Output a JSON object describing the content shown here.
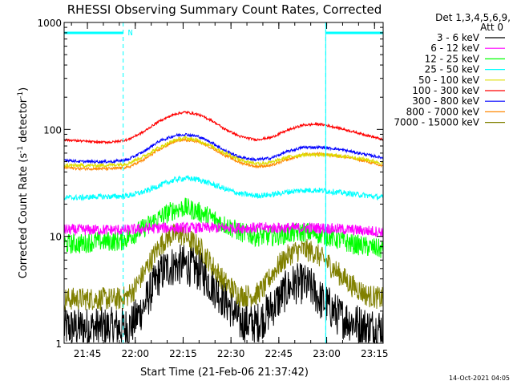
{
  "chart_data": {
    "type": "line",
    "title": "RHESSI Observing Summary Count Rates, Corrected",
    "xlabel": "Start Time (21-Feb-06 21:37:42)",
    "ylabel": "Corrected Count Rate (s",
    "ylabel_sup1": "-1",
    "ylabel_mid": " detector",
    "ylabel_sup2": "-1",
    "ylabel_end": ")",
    "yscale": "log",
    "ylim": [
      1,
      1000
    ],
    "xlim_minutes": [
      0,
      100
    ],
    "x_ticks": [
      {
        "label": "21:45",
        "minutes": 7.3
      },
      {
        "label": "22:00",
        "minutes": 22.3
      },
      {
        "label": "22:15",
        "minutes": 37.3
      },
      {
        "label": "22:30",
        "minutes": 52.3
      },
      {
        "label": "22:45",
        "minutes": 67.3
      },
      {
        "label": "23:00",
        "minutes": 82.3
      },
      {
        "label": "23:15",
        "minutes": 97.3
      }
    ],
    "y_ticks": [
      {
        "label": "1",
        "value": 1
      },
      {
        "label": "10",
        "value": 10
      },
      {
        "label": "100",
        "value": 100
      },
      {
        "label": "1000",
        "value": 1000
      }
    ],
    "legend_header": [
      "Det 1,3,4,5,6,9,",
      "Att 0"
    ],
    "night_label": "N",
    "night_bars": [
      [
        0,
        18.5
      ],
      [
        82.0,
        100
      ]
    ],
    "dashed_lines_minutes": [
      18.5,
      82.0,
      100
    ],
    "series": [
      {
        "name": "3 - 6 keV",
        "color": "#000000",
        "noise": 0.45,
        "x": [
          0,
          5,
          10,
          15,
          18,
          20,
          22,
          25,
          28,
          30,
          32,
          35,
          38,
          40,
          43,
          46,
          50,
          55,
          60,
          63,
          66,
          70,
          72,
          75,
          78,
          80,
          83,
          86,
          90,
          95,
          100
        ],
        "values": [
          1.4,
          1.4,
          1.4,
          1.4,
          1.4,
          1.4,
          1.6,
          2.2,
          3.4,
          4.4,
          5,
          5.4,
          5.4,
          5.2,
          4.6,
          3.6,
          2.6,
          1.6,
          1.5,
          1.8,
          2.3,
          3.2,
          3.6,
          3.6,
          3.2,
          2.6,
          2.2,
          1.8,
          1.6,
          1.4,
          1.4
        ]
      },
      {
        "name": "6 - 12 keV",
        "color": "#ff00ff",
        "noise": 0.12,
        "x": [
          0,
          10,
          20,
          30,
          40,
          50,
          60,
          70,
          80,
          90,
          100
        ],
        "values": [
          11.5,
          11.5,
          11.5,
          12,
          12,
          12,
          12,
          12,
          12,
          11.5,
          11
        ]
      },
      {
        "name": "12 - 25 keV",
        "color": "#00ff00",
        "noise": 0.22,
        "x": [
          0,
          5,
          10,
          15,
          18,
          22,
          26,
          30,
          35,
          38,
          42,
          46,
          50,
          55,
          60,
          65,
          70,
          75,
          80,
          85,
          90,
          95,
          100
        ],
        "values": [
          8.5,
          8.5,
          9,
          9,
          9,
          10.5,
          12.5,
          15,
          18,
          18.5,
          17,
          15,
          13,
          11,
          10,
          10,
          10.5,
          11,
          10.5,
          9.5,
          8.5,
          8,
          7.5
        ]
      },
      {
        "name": "25 - 50 keV",
        "color": "#00ffff",
        "noise": 0.06,
        "x": [
          0,
          5,
          10,
          15,
          20,
          25,
          30,
          35,
          38,
          42,
          46,
          50,
          55,
          60,
          65,
          70,
          75,
          80,
          85,
          90,
          95,
          100
        ],
        "values": [
          23,
          23,
          23.5,
          23.5,
          24,
          26,
          30,
          34,
          35,
          34,
          31,
          28,
          25,
          24,
          24.5,
          26,
          27,
          27,
          26,
          25,
          24,
          23
        ]
      },
      {
        "name": "50 - 100 keV",
        "color": "#dddd00",
        "noise": 0.04,
        "x": [
          0,
          5,
          10,
          15,
          20,
          25,
          30,
          35,
          38,
          42,
          46,
          50,
          55,
          60,
          65,
          70,
          75,
          80,
          85,
          90,
          95,
          100
        ],
        "values": [
          46,
          46,
          46,
          46.5,
          48,
          56,
          68,
          80,
          83,
          79,
          70,
          61,
          52,
          48,
          49,
          55,
          58,
          58,
          57,
          55,
          52,
          48
        ]
      },
      {
        "name": "100 - 300 keV",
        "color": "#ff0000",
        "noise": 0.025,
        "x": [
          0,
          5,
          10,
          15,
          20,
          25,
          30,
          35,
          38,
          42,
          46,
          50,
          55,
          60,
          65,
          70,
          75,
          80,
          85,
          90,
          95,
          100
        ],
        "values": [
          80,
          78,
          76,
          76,
          80,
          95,
          120,
          140,
          145,
          138,
          122,
          102,
          86,
          80,
          84,
          98,
          110,
          112,
          105,
          96,
          88,
          80
        ]
      },
      {
        "name": "300 - 800 keV",
        "color": "#0000ff",
        "noise": 0.03,
        "x": [
          0,
          5,
          10,
          15,
          20,
          25,
          30,
          35,
          38,
          42,
          46,
          50,
          55,
          60,
          65,
          70,
          75,
          80,
          85,
          90,
          95,
          100
        ],
        "values": [
          52,
          50,
          50,
          50,
          52,
          62,
          78,
          88,
          90,
          86,
          76,
          64,
          55,
          52,
          54,
          62,
          68,
          68,
          66,
          62,
          58,
          54
        ]
      },
      {
        "name": "800 - 7000 keV",
        "color": "#ff8800",
        "noise": 0.03,
        "x": [
          0,
          5,
          10,
          15,
          20,
          25,
          30,
          35,
          38,
          42,
          46,
          50,
          55,
          60,
          65,
          70,
          75,
          80,
          85,
          90,
          95,
          100
        ],
        "values": [
          44,
          43,
          43,
          43,
          44,
          52,
          65,
          78,
          80,
          77,
          68,
          58,
          49,
          45,
          46,
          52,
          58,
          59,
          57,
          54,
          50,
          45
        ]
      },
      {
        "name": "7000 - 15000 keV",
        "color": "#808000",
        "noise": 0.25,
        "x": [
          0,
          5,
          10,
          15,
          18,
          20,
          22,
          25,
          28,
          30,
          33,
          36,
          38,
          40,
          43,
          46,
          50,
          55,
          60,
          63,
          66,
          70,
          72,
          75,
          78,
          80,
          83,
          86,
          90,
          95,
          100
        ],
        "values": [
          2.6,
          2.6,
          2.6,
          2.6,
          2.6,
          2.8,
          3.2,
          4.5,
          6.5,
          8.2,
          10,
          10.5,
          10,
          9,
          7.5,
          5.5,
          3.8,
          2.8,
          2.8,
          3.4,
          4.8,
          6.5,
          7.2,
          7.5,
          7.2,
          6.5,
          5.5,
          4.5,
          3.5,
          2.8,
          2.6
        ]
      }
    ]
  },
  "timestamp": "14-Oct-2021 04:05"
}
